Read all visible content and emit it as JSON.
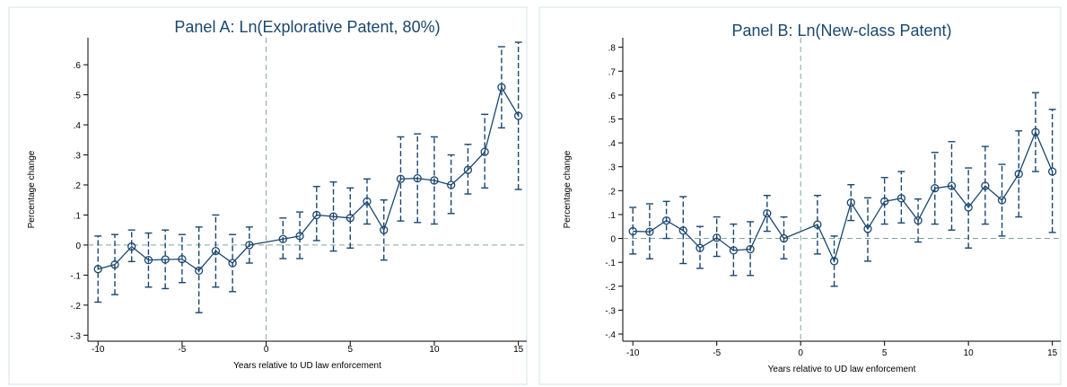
{
  "chart_data": [
    {
      "type": "line",
      "title": "Panel A: Ln(Explorative Patent, 80%)",
      "xlabel": "Years relative to UD law enforcement",
      "ylabel": "Percentage change",
      "xlim": [
        -10.6,
        15.5
      ],
      "ylim": [
        -0.32,
        0.69
      ],
      "xticks": [
        -10,
        -5,
        0,
        5,
        10,
        15
      ],
      "xtick_labels": [
        "-10",
        "-5",
        "0",
        "5",
        "10",
        "15"
      ],
      "yticks": [
        -0.3,
        -0.2,
        -0.1,
        0,
        0.1,
        0.2,
        0.3,
        0.4,
        0.5,
        0.6
      ],
      "ytick_labels": [
        "-.3",
        "-.2",
        "-.1",
        "0",
        ".1",
        ".2",
        ".3",
        ".4",
        ".5",
        ".6"
      ],
      "grid": false,
      "reference_lines": {
        "x": 0,
        "y": 0
      },
      "colors": {
        "series": "#1a476f",
        "reference": "#7fa69e",
        "title": "#1a476f",
        "frame": "#d6e0e8"
      },
      "series": [
        {
          "x": [
            -10,
            -9,
            -8,
            -7,
            -6,
            -5,
            -4,
            -3,
            -2,
            -1,
            1,
            2,
            3,
            4,
            5,
            6,
            7,
            8,
            9,
            10,
            11,
            12,
            13,
            14,
            15
          ],
          "values": [
            -0.08,
            -0.065,
            -0.005,
            -0.05,
            -0.048,
            -0.047,
            -0.085,
            -0.02,
            -0.06,
            0.0,
            0.02,
            0.03,
            0.1,
            0.095,
            0.09,
            0.145,
            0.05,
            0.22,
            0.222,
            0.215,
            0.2,
            0.25,
            0.31,
            0.525,
            0.43
          ],
          "ci_lower": [
            -0.19,
            -0.165,
            -0.055,
            -0.14,
            -0.145,
            -0.125,
            -0.225,
            -0.14,
            -0.155,
            -0.06,
            -0.045,
            -0.045,
            0.015,
            -0.02,
            -0.01,
            0.07,
            -0.05,
            0.08,
            0.075,
            0.07,
            0.105,
            0.17,
            0.19,
            0.39,
            0.185
          ],
          "ci_upper": [
            0.03,
            0.035,
            0.05,
            0.04,
            0.05,
            0.035,
            0.06,
            0.1,
            0.035,
            0.06,
            0.09,
            0.11,
            0.195,
            0.21,
            0.19,
            0.22,
            0.15,
            0.36,
            0.37,
            0.36,
            0.3,
            0.335,
            0.435,
            0.66,
            0.675
          ]
        }
      ]
    },
    {
      "type": "line",
      "title": "Panel B: Ln(New-class Patent)",
      "xlabel": "Years relative to UD law enforcement",
      "ylabel": "Percentage change",
      "xlim": [
        -10.6,
        15.5
      ],
      "ylim": [
        -0.43,
        0.84
      ],
      "xticks": [
        -10,
        -5,
        0,
        5,
        10,
        15
      ],
      "xtick_labels": [
        "-10",
        "-5",
        "0",
        "5",
        "10",
        "15"
      ],
      "yticks": [
        -0.4,
        -0.3,
        -0.2,
        -0.1,
        0,
        0.1,
        0.2,
        0.3,
        0.4,
        0.5,
        0.6,
        0.7,
        0.8
      ],
      "ytick_labels": [
        "-.4",
        "-.3",
        "-.2",
        "-.1",
        "0",
        ".1",
        ".2",
        ".3",
        ".4",
        ".5",
        ".6",
        ".7",
        ".8"
      ],
      "grid": false,
      "reference_lines": {
        "x": 0,
        "y": 0
      },
      "colors": {
        "series": "#1a476f",
        "reference": "#7fa69e",
        "title": "#1a476f",
        "frame": "#d6e0e8"
      },
      "series": [
        {
          "x": [
            -10,
            -9,
            -8,
            -7,
            -6,
            -5,
            -4,
            -3,
            -2,
            -1,
            1,
            2,
            3,
            4,
            5,
            6,
            7,
            8,
            9,
            10,
            11,
            12,
            13,
            14,
            15
          ],
          "values": [
            0.03,
            0.028,
            0.075,
            0.033,
            -0.04,
            0.003,
            -0.05,
            -0.045,
            0.105,
            0.0,
            0.058,
            -0.095,
            0.15,
            0.04,
            0.155,
            0.168,
            0.075,
            0.21,
            0.22,
            0.13,
            0.22,
            0.16,
            0.27,
            0.445,
            0.28
          ],
          "ci_lower": [
            -0.065,
            -0.085,
            0.0,
            -0.105,
            -0.125,
            -0.075,
            -0.155,
            -0.155,
            0.03,
            -0.085,
            -0.065,
            -0.2,
            0.075,
            -0.095,
            0.06,
            0.065,
            -0.015,
            0.06,
            0.035,
            -0.04,
            0.06,
            0.01,
            0.09,
            0.28,
            0.025
          ],
          "ci_upper": [
            0.13,
            0.145,
            0.155,
            0.175,
            0.05,
            0.09,
            0.06,
            0.07,
            0.18,
            0.09,
            0.18,
            0.01,
            0.225,
            0.17,
            0.255,
            0.28,
            0.165,
            0.36,
            0.405,
            0.295,
            0.385,
            0.31,
            0.45,
            0.61,
            0.54
          ]
        }
      ]
    }
  ]
}
